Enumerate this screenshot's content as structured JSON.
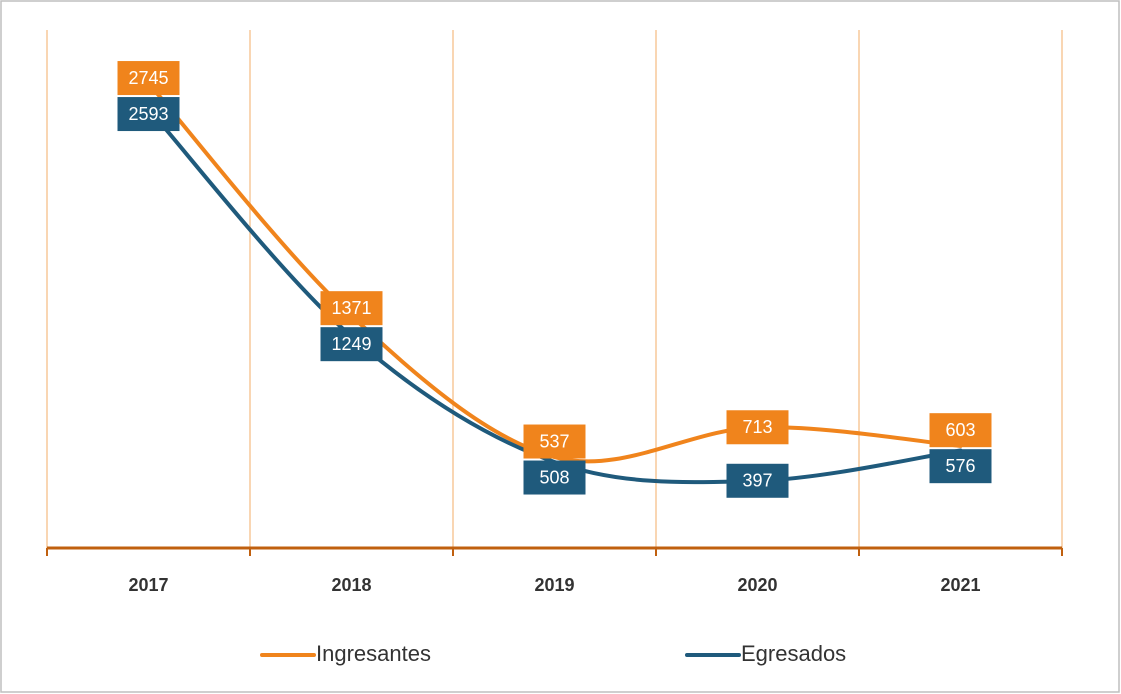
{
  "chart_data": {
    "type": "line",
    "categories": [
      "2017",
      "2018",
      "2019",
      "2020",
      "2021"
    ],
    "series": [
      {
        "name": "Ingresantes",
        "color": "#f0841c",
        "values": [
          2745,
          1371,
          537,
          713,
          603
        ]
      },
      {
        "name": "Egresados",
        "color": "#1f5a7c",
        "values": [
          2593,
          1249,
          508,
          397,
          576
        ]
      }
    ],
    "ylim": [
      0,
      3000
    ],
    "smooth": true,
    "legend": "bottom"
  }
}
